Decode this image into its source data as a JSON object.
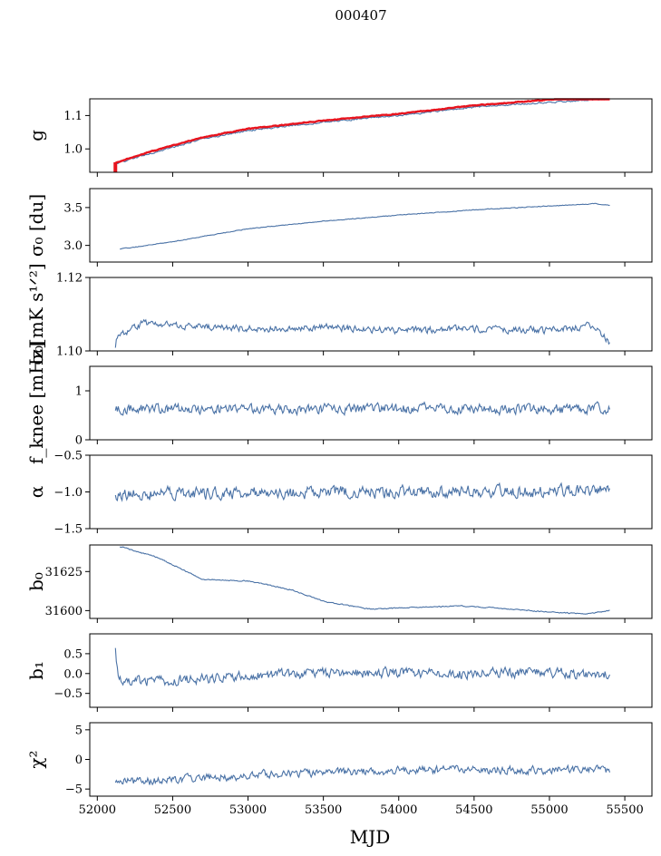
{
  "title": "000407",
  "xlabel": "MJD",
  "colors": {
    "series": "#4a72a6",
    "reference": "#e8141e",
    "axis": "#000000"
  },
  "chart_data": {
    "type": "line",
    "title": "000407",
    "xlabel": "MJD",
    "xlim": [
      51950,
      55680
    ],
    "x_ticks": [
      52000,
      52500,
      53000,
      53500,
      54000,
      54500,
      55000,
      55500
    ],
    "x_tick_labels": [
      "52000",
      "52500",
      "53000",
      "53500",
      "54000",
      "54500",
      "55000",
      "55500"
    ],
    "panels": [
      {
        "id": "g",
        "ylabel": "g",
        "ylim": [
          0.93,
          1.15
        ],
        "y_ticks": [
          1.0,
          1.1
        ],
        "y_tick_labels": [
          "1.0",
          "1.1"
        ],
        "series": [
          {
            "name": "g",
            "color": "#4a72a6",
            "noise": 0.002,
            "x": [
              52120,
              52300,
              52700,
              53000,
              53500,
              54000,
              54500,
              55000,
              55400
            ],
            "y": [
              0.955,
              0.98,
              1.03,
              1.055,
              1.08,
              1.1,
              1.125,
              1.14,
              1.15
            ]
          },
          {
            "name": "reference",
            "color": "#e8141e",
            "noise": 0.001,
            "x": [
              52120,
              52300,
              52700,
              53000,
              53500,
              54000,
              54500,
              55000,
              55400
            ],
            "y": [
              0.958,
              0.985,
              1.035,
              1.06,
              1.085,
              1.105,
              1.13,
              1.148,
              1.155
            ]
          }
        ]
      },
      {
        "id": "sigma0_du",
        "ylabel": "σ₀ [du]",
        "ylim": [
          2.78,
          3.75
        ],
        "y_ticks": [
          3.0,
          3.5
        ],
        "y_tick_labels": [
          "3.0",
          "3.5"
        ],
        "series": [
          {
            "name": "sigma0",
            "color": "#4a72a6",
            "noise": 0.004,
            "x": [
              52150,
              52500,
              53000,
              53500,
              54000,
              54500,
              55000,
              55300,
              55400
            ],
            "y": [
              2.95,
              3.05,
              3.22,
              3.32,
              3.4,
              3.47,
              3.52,
              3.55,
              3.53
            ]
          }
        ]
      },
      {
        "id": "sigma0_mK",
        "ylabel": "σ₀[mK s¹ᐟ²]",
        "ylim": [
          1.1,
          1.12
        ],
        "y_ticks": [
          1.1,
          1.12
        ],
        "y_tick_labels": [
          "1.10",
          "1.12"
        ],
        "series": [
          {
            "name": "sigma0_mK",
            "color": "#4a72a6",
            "noise": 0.0008,
            "x": [
              52120,
              52130,
              52300,
              52700,
              53200,
              53500,
              54000,
              54500,
              55000,
              55300,
              55400
            ],
            "y": [
              1.1015,
              1.1035,
              1.1075,
              1.1065,
              1.106,
              1.1065,
              1.1055,
              1.106,
              1.1055,
              1.107,
              1.102
            ]
          }
        ]
      },
      {
        "id": "fknee",
        "ylabel": "f_knee [mHz]",
        "ylim": [
          0,
          1.5
        ],
        "y_ticks": [
          0,
          1
        ],
        "y_tick_labels": [
          "0",
          "1"
        ],
        "series": [
          {
            "name": "fknee",
            "color": "#4a72a6",
            "noise": 0.09,
            "x": [
              52120,
              52500,
              53000,
              53500,
              54000,
              54500,
              55000,
              55400
            ],
            "y": [
              0.65,
              0.63,
              0.62,
              0.62,
              0.64,
              0.63,
              0.62,
              0.64
            ]
          }
        ]
      },
      {
        "id": "alpha",
        "ylabel": "α",
        "ylim": [
          -1.5,
          -0.5
        ],
        "y_ticks": [
          -1.5,
          -1.0,
          -0.5
        ],
        "y_tick_labels": [
          "−1.5",
          "−1.0",
          "−0.5"
        ],
        "series": [
          {
            "name": "alpha",
            "color": "#4a72a6",
            "noise": 0.07,
            "x": [
              52120,
              52500,
              53000,
              53500,
              54000,
              54500,
              55000,
              55400
            ],
            "y": [
              -1.03,
              -1.02,
              -1.02,
              -1.0,
              -1.0,
              -0.99,
              -0.99,
              -0.98
            ]
          }
        ]
      },
      {
        "id": "b0",
        "ylabel": "b₀",
        "ylim": [
          31595,
          31642
        ],
        "y_ticks": [
          31600,
          31625
        ],
        "y_tick_labels": [
          "31600",
          "31625"
        ],
        "series": [
          {
            "name": "b0",
            "color": "#4a72a6",
            "noise": 0.3,
            "x": [
              52150,
              52400,
              52700,
              53000,
              53300,
              53500,
              53800,
              54100,
              54400,
              54600,
              55000,
              55250,
              55400
            ],
            "y": [
              31641,
              31634,
              31620,
              31619,
              31613,
              31606,
              31601,
              31602,
              31603,
              31602,
              31599,
              31598,
              31600
            ]
          }
        ]
      },
      {
        "id": "b1",
        "ylabel": "b₁",
        "ylim": [
          -0.85,
          1.0
        ],
        "y_ticks": [
          -0.5,
          0.0,
          0.5
        ],
        "y_tick_labels": [
          "−0.5",
          "0.0",
          "0.5"
        ],
        "series": [
          {
            "name": "b1",
            "color": "#4a72a6",
            "noise": 0.11,
            "x": [
              52120,
              52140,
              52400,
              53000,
              53500,
              54000,
              54500,
              55000,
              55400
            ],
            "y": [
              0.55,
              -0.15,
              -0.2,
              -0.05,
              0.0,
              0.02,
              0.0,
              0.02,
              0.0
            ]
          }
        ]
      },
      {
        "id": "chi2",
        "ylabel": "χ²",
        "ylim": [
          -6.2,
          6.2
        ],
        "y_ticks": [
          -5,
          0,
          5
        ],
        "y_tick_labels": [
          "−5",
          "0",
          "5"
        ],
        "series": [
          {
            "name": "chi2",
            "color": "#4a72a6",
            "noise": 0.6,
            "x": [
              52120,
              52300,
              52800,
              53300,
              53800,
              54300,
              54800,
              55400
            ],
            "y": [
              -3.5,
              -3.8,
              -3.0,
              -2.4,
              -2.0,
              -1.8,
              -1.8,
              -1.8
            ]
          }
        ]
      }
    ]
  }
}
